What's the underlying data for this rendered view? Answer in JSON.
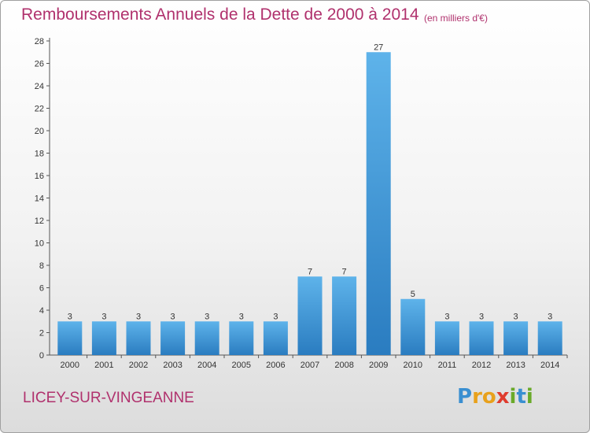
{
  "title": "Remboursements Annuels de la Dette de 2000 à 2014",
  "subtitle": "(en milliers d'€)",
  "commune": "LICEY-SUR-VINGEANNE",
  "logo_letters": [
    "P",
    "r",
    "o",
    "x",
    "i",
    "t",
    "i"
  ],
  "colors": {
    "accent": "#b0316d",
    "bar_light": "#5eb3ea",
    "bar_dark": "#2a7cc0"
  },
  "chart_data": {
    "type": "bar",
    "categories": [
      "2000",
      "2001",
      "2002",
      "2003",
      "2004",
      "2005",
      "2006",
      "2007",
      "2008",
      "2009",
      "2010",
      "2011",
      "2012",
      "2013",
      "2014"
    ],
    "values": [
      3,
      3,
      3,
      3,
      3,
      3,
      3,
      7,
      7,
      27,
      5,
      3,
      3,
      3,
      3
    ],
    "title": "Remboursements Annuels de la Dette de 2000 à 2014",
    "xlabel": "",
    "ylabel": "",
    "ylim": [
      0,
      28
    ],
    "yticks": [
      0,
      2,
      4,
      6,
      8,
      10,
      12,
      14,
      16,
      18,
      20,
      22,
      24,
      26,
      28
    ],
    "grid": false,
    "legend": "none"
  }
}
